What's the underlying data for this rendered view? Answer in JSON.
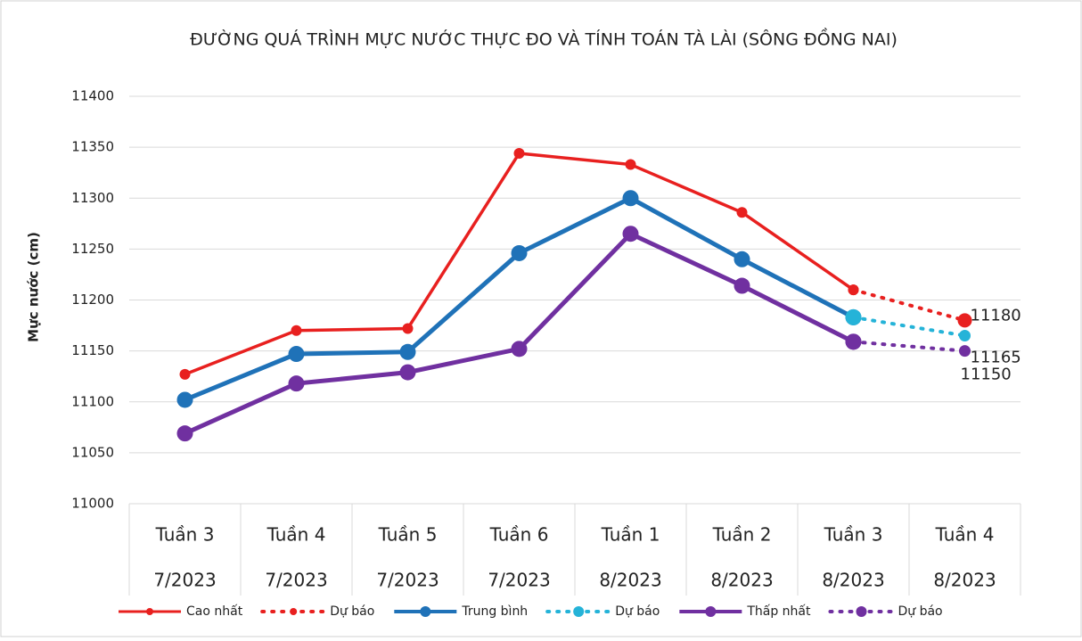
{
  "chart_data": {
    "type": "line",
    "title": "ĐƯỜNG QUÁ TRÌNH MỰC NƯỚC THỰC ĐO VÀ TÍNH TOÁN TÀ LÀI (SÔNG ĐỒNG NAI)",
    "y_label": "Mực nước (cm)",
    "categories": [
      [
        "Tuần 3",
        "7/2023"
      ],
      [
        "Tuần 4",
        "7/2023"
      ],
      [
        "Tuần 5",
        "7/2023"
      ],
      [
        "Tuần 6",
        "7/2023"
      ],
      [
        "Tuần 1",
        "8/2023"
      ],
      [
        "Tuần 2",
        "8/2023"
      ],
      [
        "Tuần 3",
        "8/2023"
      ],
      [
        "Tuần 4",
        "8/2023"
      ]
    ],
    "ylim": [
      11000,
      11400
    ],
    "yticks": [
      11000,
      11050,
      11100,
      11150,
      11200,
      11250,
      11300,
      11350,
      11400
    ],
    "grid": true,
    "legend": "bottom",
    "series": [
      {
        "name": "Cao nhất",
        "color": "#e8201f",
        "style": "solid",
        "values": [
          11127,
          11170,
          11172,
          11344,
          11333,
          11286,
          11210,
          null
        ]
      },
      {
        "name": "Dự báo",
        "color": "#e8201f",
        "style": "dotted",
        "values": [
          null,
          null,
          null,
          null,
          null,
          null,
          11210,
          11180
        ],
        "label_last": true
      },
      {
        "name": "Trung bình",
        "color": "#1f72b8",
        "style": "solid",
        "values": [
          11102,
          11147,
          11149,
          11246,
          11300,
          11240,
          11183,
          null
        ]
      },
      {
        "name": "Dự báo",
        "color": "#25b3d8",
        "style": "dotted",
        "values": [
          null,
          null,
          null,
          null,
          null,
          null,
          11183,
          11165
        ],
        "label_last": true
      },
      {
        "name": "Thấp nhất",
        "color": "#7030a0",
        "style": "solid",
        "values": [
          11069,
          11118,
          11129,
          11152,
          11265,
          11214,
          11159,
          null
        ]
      },
      {
        "name": "Dự báo",
        "color": "#7030a0",
        "style": "dotted",
        "values": [
          null,
          null,
          null,
          null,
          null,
          null,
          11159,
          11150
        ],
        "label_last": true
      }
    ]
  }
}
